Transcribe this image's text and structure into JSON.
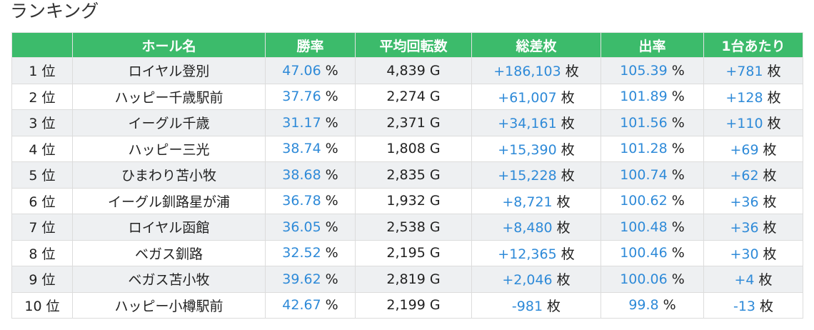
{
  "title": "ランキング",
  "table": {
    "headers": [
      "",
      "ホール名",
      "勝率",
      "平均回転数",
      "総差枚",
      "出率",
      "1台あたり"
    ],
    "rows": [
      [
        "1 位",
        "ロイヤル登別",
        {
          "value": "47.06",
          "unit": "%"
        },
        "4,839 G",
        {
          "value": "+186,103",
          "unit": "枚"
        },
        {
          "value": "105.39",
          "unit": "%"
        },
        {
          "value": "+781",
          "unit": "枚"
        }
      ],
      [
        "2 位",
        "ハッピー千歳駅前",
        {
          "value": "37.76",
          "unit": "%"
        },
        "2,274 G",
        {
          "value": "+61,007",
          "unit": "枚"
        },
        {
          "value": "101.89",
          "unit": "%"
        },
        {
          "value": "+128",
          "unit": "枚"
        }
      ],
      [
        "3 位",
        "イーグル千歳",
        {
          "value": "31.17",
          "unit": "%"
        },
        "2,371 G",
        {
          "value": "+34,161",
          "unit": "枚"
        },
        {
          "value": "101.56",
          "unit": "%"
        },
        {
          "value": "+110",
          "unit": "枚"
        }
      ],
      [
        "4 位",
        "ハッピー三光",
        {
          "value": "38.74",
          "unit": "%"
        },
        "1,808 G",
        {
          "value": "+15,390",
          "unit": "枚"
        },
        {
          "value": "101.28",
          "unit": "%"
        },
        {
          "value": "+69",
          "unit": "枚"
        }
      ],
      [
        "5 位",
        "ひまわり苫小牧",
        {
          "value": "38.68",
          "unit": "%"
        },
        "2,835 G",
        {
          "value": "+15,228",
          "unit": "枚"
        },
        {
          "value": "100.74",
          "unit": "%"
        },
        {
          "value": "+62",
          "unit": "枚"
        }
      ],
      [
        "6 位",
        "イーグル釧路星が浦",
        {
          "value": "36.78",
          "unit": "%"
        },
        "1,932 G",
        {
          "value": "+8,721",
          "unit": "枚"
        },
        {
          "value": "100.62",
          "unit": "%"
        },
        {
          "value": "+36",
          "unit": "枚"
        }
      ],
      [
        "7 位",
        "ロイヤル函館",
        {
          "value": "36.05",
          "unit": "%"
        },
        "2,538 G",
        {
          "value": "+8,480",
          "unit": "枚"
        },
        {
          "value": "100.48",
          "unit": "%"
        },
        {
          "value": "+36",
          "unit": "枚"
        }
      ],
      [
        "8 位",
        "ベガス釧路",
        {
          "value": "32.52",
          "unit": "%"
        },
        "2,195 G",
        {
          "value": "+12,365",
          "unit": "枚"
        },
        {
          "value": "100.46",
          "unit": "%"
        },
        {
          "value": "+30",
          "unit": "枚"
        }
      ],
      [
        "9 位",
        "ベガス苫小牧",
        {
          "value": "39.62",
          "unit": "%"
        },
        "2,819 G",
        {
          "value": "+2,046",
          "unit": "枚"
        },
        {
          "value": "100.06",
          "unit": "%"
        },
        {
          "value": "+4",
          "unit": "枚"
        }
      ],
      [
        "10 位",
        "ハッピー小樽駅前",
        {
          "value": "42.67",
          "unit": "%"
        },
        "2,199 G",
        {
          "value": "-981",
          "unit": "枚"
        },
        {
          "value": "99.8",
          "unit": "%"
        },
        {
          "value": "-13",
          "unit": "枚"
        }
      ]
    ]
  }
}
